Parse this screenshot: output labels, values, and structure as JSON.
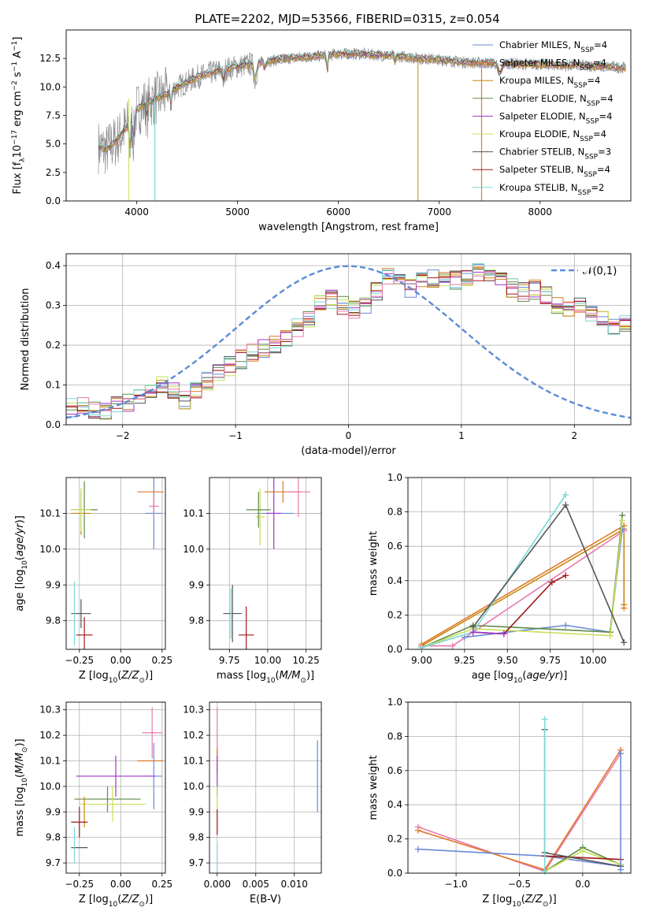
{
  "figure": {
    "title": "PLATE=2202, MJD=53566, FIBERID=0315, z=0.054"
  },
  "colors": {
    "chabrier_miles": "#6a8ad6",
    "salpeter_miles": "#e07a2a",
    "kroupa_miles": "#c8880e",
    "chabrier_elodie": "#5f8a48",
    "salpeter_elodie": "#a535c8",
    "kroupa_elodie": "#c8e05a",
    "chabrier_stelib": "#555555",
    "salpeter_stelib": "#a01818",
    "kroupa_stelib": "#7ad8d8",
    "pink": "#e87ab0",
    "data_gray": "#808080",
    "normal": "#5b8bd6"
  },
  "chart_data": [
    {
      "id": "spectrum",
      "type": "line",
      "title": "PLATE=2202, MJD=53566, FIBERID=0315, z=0.054",
      "xlabel": "wavelength [Angstrom, rest frame]",
      "ylabel": "Flux [f_λ 10^-17 erg cm^-2 s^-1 A^-1]",
      "xlim": [
        3300,
        8900
      ],
      "ylim": [
        0,
        15
      ],
      "xticks": [
        4000,
        5000,
        6000,
        7000,
        8000
      ],
      "yticks": [
        0.0,
        2.5,
        5.0,
        7.5,
        10.0,
        12.5
      ],
      "grid": false,
      "legend_position": "top-right",
      "legend": [
        "Chabrier MILES, N_SSP=4",
        "Salpeter MILES, N_SSP=4",
        "Kroupa MILES, N_SSP=4",
        "Chabrier ELODIE, N_SSP=4",
        "Salpeter ELODIE, N_SSP=4",
        "Kroupa ELODIE, N_SSP=4",
        "Chabrier STELIB, N_SSP=3",
        "Salpeter STELIB, N_SSP=4",
        "Kroupa STELIB, N_SSP=2"
      ],
      "continuum": {
        "x": [
          3600,
          3700,
          3800,
          3900,
          4000,
          4100,
          4200,
          4300,
          4400,
          4500,
          4600,
          4700,
          4800,
          4900,
          5000,
          5200,
          5400,
          5600,
          5800,
          6000,
          6200,
          6400,
          6600,
          6800,
          7000,
          7200,
          7400,
          7600,
          7800,
          8000,
          8200,
          8400,
          8600,
          8800
        ],
        "y": [
          4.8,
          4.5,
          5.3,
          6.5,
          8.0,
          8.6,
          9.0,
          9.4,
          10.0,
          10.4,
          10.9,
          11.1,
          11.4,
          11.6,
          11.8,
          12.1,
          12.4,
          12.6,
          12.7,
          12.9,
          12.9,
          12.8,
          12.7,
          12.5,
          12.4,
          12.2,
          12.1,
          12.1,
          12.0,
          12.0,
          11.9,
          11.9,
          11.8,
          11.7
        ]
      }
    },
    {
      "id": "residual_hist",
      "type": "line",
      "xlabel": "(data-model)/error",
      "ylabel": "Normed distribution",
      "xlim": [
        -2.5,
        2.5
      ],
      "ylim": [
        0.0,
        0.43
      ],
      "xticks": [
        -2,
        -1,
        0,
        1,
        2
      ],
      "yticks": [
        0.0,
        0.1,
        0.2,
        0.3,
        0.4
      ],
      "grid": true,
      "legend_position": "top-right",
      "legend": [
        "𝒩(0,1)"
      ],
      "bin_width": 0.1,
      "bins_start": -2.5,
      "base_hist": [
        0.045,
        0.048,
        0.04,
        0.038,
        0.05,
        0.058,
        0.072,
        0.085,
        0.098,
        0.083,
        0.06,
        0.09,
        0.112,
        0.133,
        0.148,
        0.165,
        0.18,
        0.19,
        0.198,
        0.22,
        0.245,
        0.27,
        0.3,
        0.315,
        0.3,
        0.29,
        0.305,
        0.335,
        0.37,
        0.365,
        0.345,
        0.365,
        0.37,
        0.36,
        0.365,
        0.375,
        0.38,
        0.37,
        0.36,
        0.345,
        0.335,
        0.34,
        0.325,
        0.305,
        0.29,
        0.295,
        0.275,
        0.26,
        0.24,
        0.25,
        0.22,
        0.205,
        0.185,
        0.175,
        0.17,
        0.15,
        0.13,
        0.115,
        0.105,
        0.1,
        0.09,
        0.08,
        0.075,
        0.068,
        0.055,
        0.05,
        0.048,
        0.042,
        0.04,
        0.04
      ]
    },
    {
      "id": "age_vs_Z",
      "type": "scatter",
      "xlabel": "Z [log10(Z/Z☉)]",
      "ylabel": "age  [log10(age/yr)]",
      "xlim": [
        -0.33,
        0.27
      ],
      "ylim": [
        9.72,
        10.2
      ],
      "xticks": [
        -0.25,
        0.0,
        0.25
      ],
      "yticks": [
        9.8,
        9.9,
        10.0,
        10.1
      ],
      "grid": true,
      "points": [
        {
          "key": "chabrier_miles",
          "x": 0.2,
          "y": 10.1,
          "xerr": 0.05,
          "yerr": 0.1
        },
        {
          "key": "salpeter_miles",
          "x": 0.18,
          "y": 10.16,
          "xerr": 0.08,
          "yerr": 0.0
        },
        {
          "key": "pink",
          "x": 0.2,
          "y": 10.12,
          "xerr": 0.03,
          "yerr": 0.03
        },
        {
          "key": "chabrier_elodie",
          "x": -0.22,
          "y": 10.11,
          "xerr": 0.08,
          "yerr": 0.08
        },
        {
          "key": "kroupa_miles",
          "x": -0.24,
          "y": 10.1,
          "xerr": 0.06,
          "yerr": 0.06
        },
        {
          "key": "kroupa_elodie",
          "x": -0.24,
          "y": 10.11,
          "xerr": 0.06,
          "yerr": 0.06
        },
        {
          "key": "chabrier_stelib",
          "x": -0.24,
          "y": 9.82,
          "xerr": 0.06,
          "yerr": 0.04
        },
        {
          "key": "salpeter_stelib",
          "x": -0.22,
          "y": 9.76,
          "xerr": 0.05,
          "yerr": 0.05
        },
        {
          "key": "kroupa_stelib",
          "x": -0.28,
          "y": 9.82,
          "xerr": 0.0,
          "yerr": 0.09
        }
      ]
    },
    {
      "id": "age_vs_mass",
      "type": "scatter",
      "xlabel": "mass [log10(M/M☉)]",
      "ylabel": "",
      "xlim": [
        9.62,
        10.35
      ],
      "ylim": [
        9.72,
        10.2
      ],
      "xticks": [
        9.75,
        10.0,
        10.25
      ],
      "yticks": [
        9.8,
        9.9,
        10.0,
        10.1
      ],
      "grid": true,
      "points": [
        {
          "key": "chabrier_miles",
          "x": 10.05,
          "y": 10.1,
          "xerr": 0.12,
          "yerr": 0.0
        },
        {
          "key": "salpeter_miles",
          "x": 10.1,
          "y": 10.16,
          "xerr": 0.12,
          "yerr": 0.03
        },
        {
          "key": "pink",
          "x": 10.2,
          "y": 10.16,
          "xerr": 0.08,
          "yerr": 0.07
        },
        {
          "key": "salpeter_elodie",
          "x": 10.04,
          "y": 10.1,
          "xerr": 0.05,
          "yerr": 0.1
        },
        {
          "key": "kroupa_elodie",
          "x": 9.95,
          "y": 10.09,
          "xerr": 0.03,
          "yerr": 0.08
        },
        {
          "key": "chabrier_elodie",
          "x": 9.94,
          "y": 10.11,
          "xerr": 0.08,
          "yerr": 0.05
        },
        {
          "key": "chabrier_stelib",
          "x": 9.77,
          "y": 9.82,
          "xerr": 0.06,
          "yerr": 0.08
        },
        {
          "key": "salpeter_stelib",
          "x": 9.86,
          "y": 9.76,
          "xerr": 0.05,
          "yerr": 0.08
        },
        {
          "key": "kroupa_stelib",
          "x": 9.76,
          "y": 9.82,
          "xerr": 0.0,
          "yerr": 0.07
        }
      ]
    },
    {
      "id": "mass_weight_vs_age",
      "type": "line",
      "xlabel": "age  [log10(age/yr)]",
      "ylabel": "mass weight",
      "xlim": [
        8.92,
        10.22
      ],
      "ylim": [
        0.0,
        1.0
      ],
      "xticks": [
        9.0,
        9.25,
        9.5,
        9.75,
        10.0
      ],
      "yticks": [
        0.0,
        0.2,
        0.4,
        0.6,
        0.8,
        1.0
      ],
      "grid": true,
      "series": [
        {
          "key": "salpeter_miles",
          "x": [
            9.0,
            10.18,
            10.18
          ],
          "y": [
            0.03,
            0.72,
            0.24
          ]
        },
        {
          "key": "kroupa_miles",
          "x": [
            9.0,
            10.18,
            10.18
          ],
          "y": [
            0.02,
            0.7,
            0.26
          ]
        },
        {
          "key": "pink",
          "x": [
            9.0,
            9.18,
            9.3,
            10.18
          ],
          "y": [
            0.02,
            0.02,
            0.1,
            0.69
          ]
        },
        {
          "key": "chabrier_miles",
          "x": [
            9.25,
            9.84,
            10.1,
            10.17
          ],
          "y": [
            0.07,
            0.14,
            0.1,
            0.7
          ]
        },
        {
          "key": "chabrier_elodie",
          "x": [
            9.0,
            9.3,
            10.1,
            10.17
          ],
          "y": [
            0.01,
            0.14,
            0.1,
            0.78
          ]
        },
        {
          "key": "kroupa_elodie",
          "x": [
            9.0,
            9.3,
            10.1,
            10.17
          ],
          "y": [
            0.01,
            0.12,
            0.08,
            0.75
          ]
        },
        {
          "key": "kroupa_stelib",
          "x": [
            9.0,
            9.3,
            9.84
          ],
          "y": [
            0.01,
            0.1,
            0.9
          ]
        },
        {
          "key": "chabrier_stelib",
          "x": [
            9.3,
            9.84,
            10.18
          ],
          "y": [
            0.13,
            0.84,
            0.04
          ]
        },
        {
          "key": "salpeter_stelib",
          "x": [
            9.3,
            9.48,
            9.76,
            9.84
          ],
          "y": [
            0.1,
            0.09,
            0.39,
            0.43
          ]
        },
        {
          "key": "salpeter_elodie",
          "x": [
            9.3,
            9.48
          ],
          "y": [
            0.1,
            0.09
          ]
        }
      ]
    },
    {
      "id": "mass_vs_Z",
      "type": "scatter",
      "xlabel": "Z [log10(Z/Z☉)]",
      "ylabel": "mass [log10(M/M☉)]",
      "xlim": [
        -0.33,
        0.27
      ],
      "ylim": [
        9.66,
        10.33
      ],
      "xticks": [
        -0.25,
        0.0,
        0.25
      ],
      "yticks": [
        9.7,
        9.8,
        9.9,
        10.0,
        10.1,
        10.2,
        10.3
      ],
      "grid": true,
      "points": [
        {
          "key": "pink",
          "x": 0.19,
          "y": 10.21,
          "xerr": 0.06,
          "yerr": 0.1
        },
        {
          "key": "salpeter_miles",
          "x": 0.18,
          "y": 10.1,
          "xerr": 0.08,
          "yerr": 0.0
        },
        {
          "key": "chabrier_miles",
          "x": 0.2,
          "y": 10.04,
          "xerr": 0.05,
          "yerr": 0.13
        },
        {
          "key": "salpeter_elodie",
          "x": -0.03,
          "y": 10.04,
          "xerr": 0.24,
          "yerr": 0.08
        },
        {
          "key": "chabrier_elodie",
          "x": -0.08,
          "y": 9.95,
          "xerr": 0.2,
          "yerr": 0.05
        },
        {
          "key": "kroupa_elodie",
          "x": -0.05,
          "y": 9.93,
          "xerr": 0.2,
          "yerr": 0.07
        },
        {
          "key": "kroupa_miles",
          "x": -0.22,
          "y": 9.9,
          "xerr": 0.0,
          "yerr": 0.06
        },
        {
          "key": "salpeter_stelib",
          "x": -0.25,
          "y": 9.86,
          "xerr": 0.05,
          "yerr": 0.06
        },
        {
          "key": "chabrier_stelib",
          "x": -0.25,
          "y": 9.76,
          "xerr": 0.05,
          "yerr": 0.0
        },
        {
          "key": "kroupa_stelib",
          "x": -0.28,
          "y": 9.77,
          "xerr": 0.0,
          "yerr": 0.07
        }
      ]
    },
    {
      "id": "mass_vs_ebv",
      "type": "scatter",
      "xlabel": "E(B-V)",
      "ylabel": "",
      "xlim": [
        -0.001,
        0.0135
      ],
      "ylim": [
        9.66,
        10.33
      ],
      "xticks": [
        0.0,
        0.005,
        0.01
      ],
      "yticks": [
        9.7,
        9.8,
        9.9,
        10.0,
        10.1,
        10.2,
        10.3
      ],
      "grid": true,
      "points": [
        {
          "key": "pink",
          "x": 0.0,
          "y": 10.21,
          "xerr": 0.0,
          "yerr": 0.1
        },
        {
          "key": "salpeter_miles",
          "x": 0.0,
          "y": 10.1,
          "xerr": 0.0,
          "yerr": 0.05
        },
        {
          "key": "salpeter_elodie",
          "x": 0.0,
          "y": 10.04,
          "xerr": 0.0,
          "yerr": 0.08
        },
        {
          "key": "kroupa_elodie",
          "x": 0.0,
          "y": 9.93,
          "xerr": 0.0,
          "yerr": 0.07
        },
        {
          "key": "salpeter_stelib",
          "x": 0.0,
          "y": 9.86,
          "xerr": 0.0,
          "yerr": 0.05
        },
        {
          "key": "kroupa_stelib",
          "x": 0.0,
          "y": 9.72,
          "xerr": 0.0,
          "yerr": 0.06
        },
        {
          "key": "chabrier_miles",
          "x": 0.013,
          "y": 10.04,
          "xerr": 0.0,
          "yerr": 0.14
        }
      ]
    },
    {
      "id": "mass_weight_vs_Z",
      "type": "line",
      "xlabel": "Z [log10(Z/Z☉)]",
      "ylabel": "mass weight",
      "xlim": [
        -1.38,
        0.38
      ],
      "ylim": [
        0.0,
        1.0
      ],
      "xticks": [
        -1.0,
        -0.5,
        0.0
      ],
      "yticks": [
        0.0,
        0.2,
        0.4,
        0.6,
        0.8,
        1.0
      ],
      "grid": true,
      "series": [
        {
          "key": "pink",
          "x": [
            -1.3,
            -0.3,
            0.3
          ],
          "y": [
            0.27,
            0.01,
            0.7
          ]
        },
        {
          "key": "salpeter_miles",
          "x": [
            -1.3,
            -0.3,
            0.3
          ],
          "y": [
            0.25,
            0.02,
            0.72
          ]
        },
        {
          "key": "chabrier_miles",
          "x": [
            -1.3,
            -0.3,
            0.3
          ],
          "y": [
            0.14,
            0.1,
            0.04
          ]
        },
        {
          "key": "chabrier_elodie",
          "x": [
            -0.3,
            0.0,
            0.3
          ],
          "y": [
            0.01,
            0.15,
            0.05
          ]
        },
        {
          "key": "kroupa_elodie",
          "x": [
            -0.3,
            0.0,
            0.3
          ],
          "y": [
            0.01,
            0.13,
            0.05
          ]
        },
        {
          "key": "salpeter_stelib",
          "x": [
            -0.3,
            0.3
          ],
          "y": [
            0.1,
            0.08
          ]
        },
        {
          "key": "chabrier_stelib",
          "x": [
            -0.3,
            -0.3,
            0.3
          ],
          "y": [
            0.84,
            0.12,
            0.04
          ]
        },
        {
          "key": "kroupa_stelib",
          "x": [
            -0.3,
            -0.3
          ],
          "y": [
            0.01,
            0.9
          ]
        },
        {
          "key": "chabrier_miles",
          "x": [
            0.3,
            0.3
          ],
          "y": [
            0.02,
            0.7
          ]
        }
      ]
    }
  ]
}
